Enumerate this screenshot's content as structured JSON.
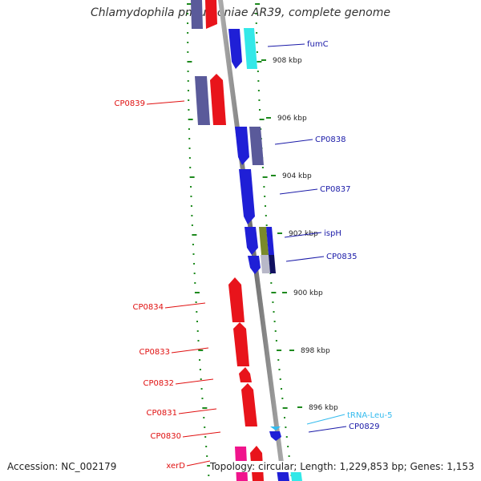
{
  "title": "Chlamydophila pneumoniae AR39, complete genome",
  "footer": {
    "accession": "Accession: NC_002179",
    "summary": "Topology: circular; Length: 1,229,853 bp; Genes: 1,153"
  },
  "scale_labels": [
    "908 kbp",
    "906 kbp",
    "904 kbp",
    "902 kbp",
    "900 kbp",
    "898 kbp",
    "896 kbp"
  ],
  "genes": [
    {
      "label": "fumC",
      "strand": "forward",
      "color": "#1f1fd6"
    },
    {
      "label": "CP0839",
      "strand": "reverse",
      "color": "#e8141b"
    },
    {
      "label": "CP0838",
      "strand": "forward",
      "color": "#1f1fd6"
    },
    {
      "label": "CP0837",
      "strand": "forward",
      "color": "#1f1fd6"
    },
    {
      "label": "ispH",
      "strand": "forward",
      "color": "#1f1fd6"
    },
    {
      "label": "CP0835",
      "strand": "forward",
      "color": "#1f1fd6"
    },
    {
      "label": "CP0834",
      "strand": "reverse",
      "color": "#e8141b"
    },
    {
      "label": "CP0833",
      "strand": "reverse",
      "color": "#e8141b"
    },
    {
      "label": "CP0832",
      "strand": "reverse",
      "color": "#e8141b"
    },
    {
      "label": "CP0831",
      "strand": "reverse",
      "color": "#e8141b"
    },
    {
      "label": "CP0830",
      "strand": "reverse",
      "color": "#e8141b"
    },
    {
      "label": "tRNA-Leu-5",
      "strand": "forward",
      "color": "#33bbee"
    },
    {
      "label": "CP0829",
      "strand": "forward",
      "color": "#1f1fd6"
    },
    {
      "label": "xerD",
      "strand": "reverse",
      "color": "#e8141b"
    }
  ],
  "colors": {
    "forward_label": "#1a1aa8",
    "reverse_label": "#e01010",
    "trna_label": "#33bbee",
    "backbone": "#808080",
    "dots": "#1e8a1e",
    "cds_blue": "#1f1fd6",
    "cds_red": "#e8141b",
    "cog_purple": "#5a5a9a",
    "cog_cyan": "#33e8e8",
    "cog_olive": "#7a8a2a",
    "cog_pink": "#f0148c",
    "cog_navy": "#101060",
    "cog_grey": "#b8b8c8"
  }
}
